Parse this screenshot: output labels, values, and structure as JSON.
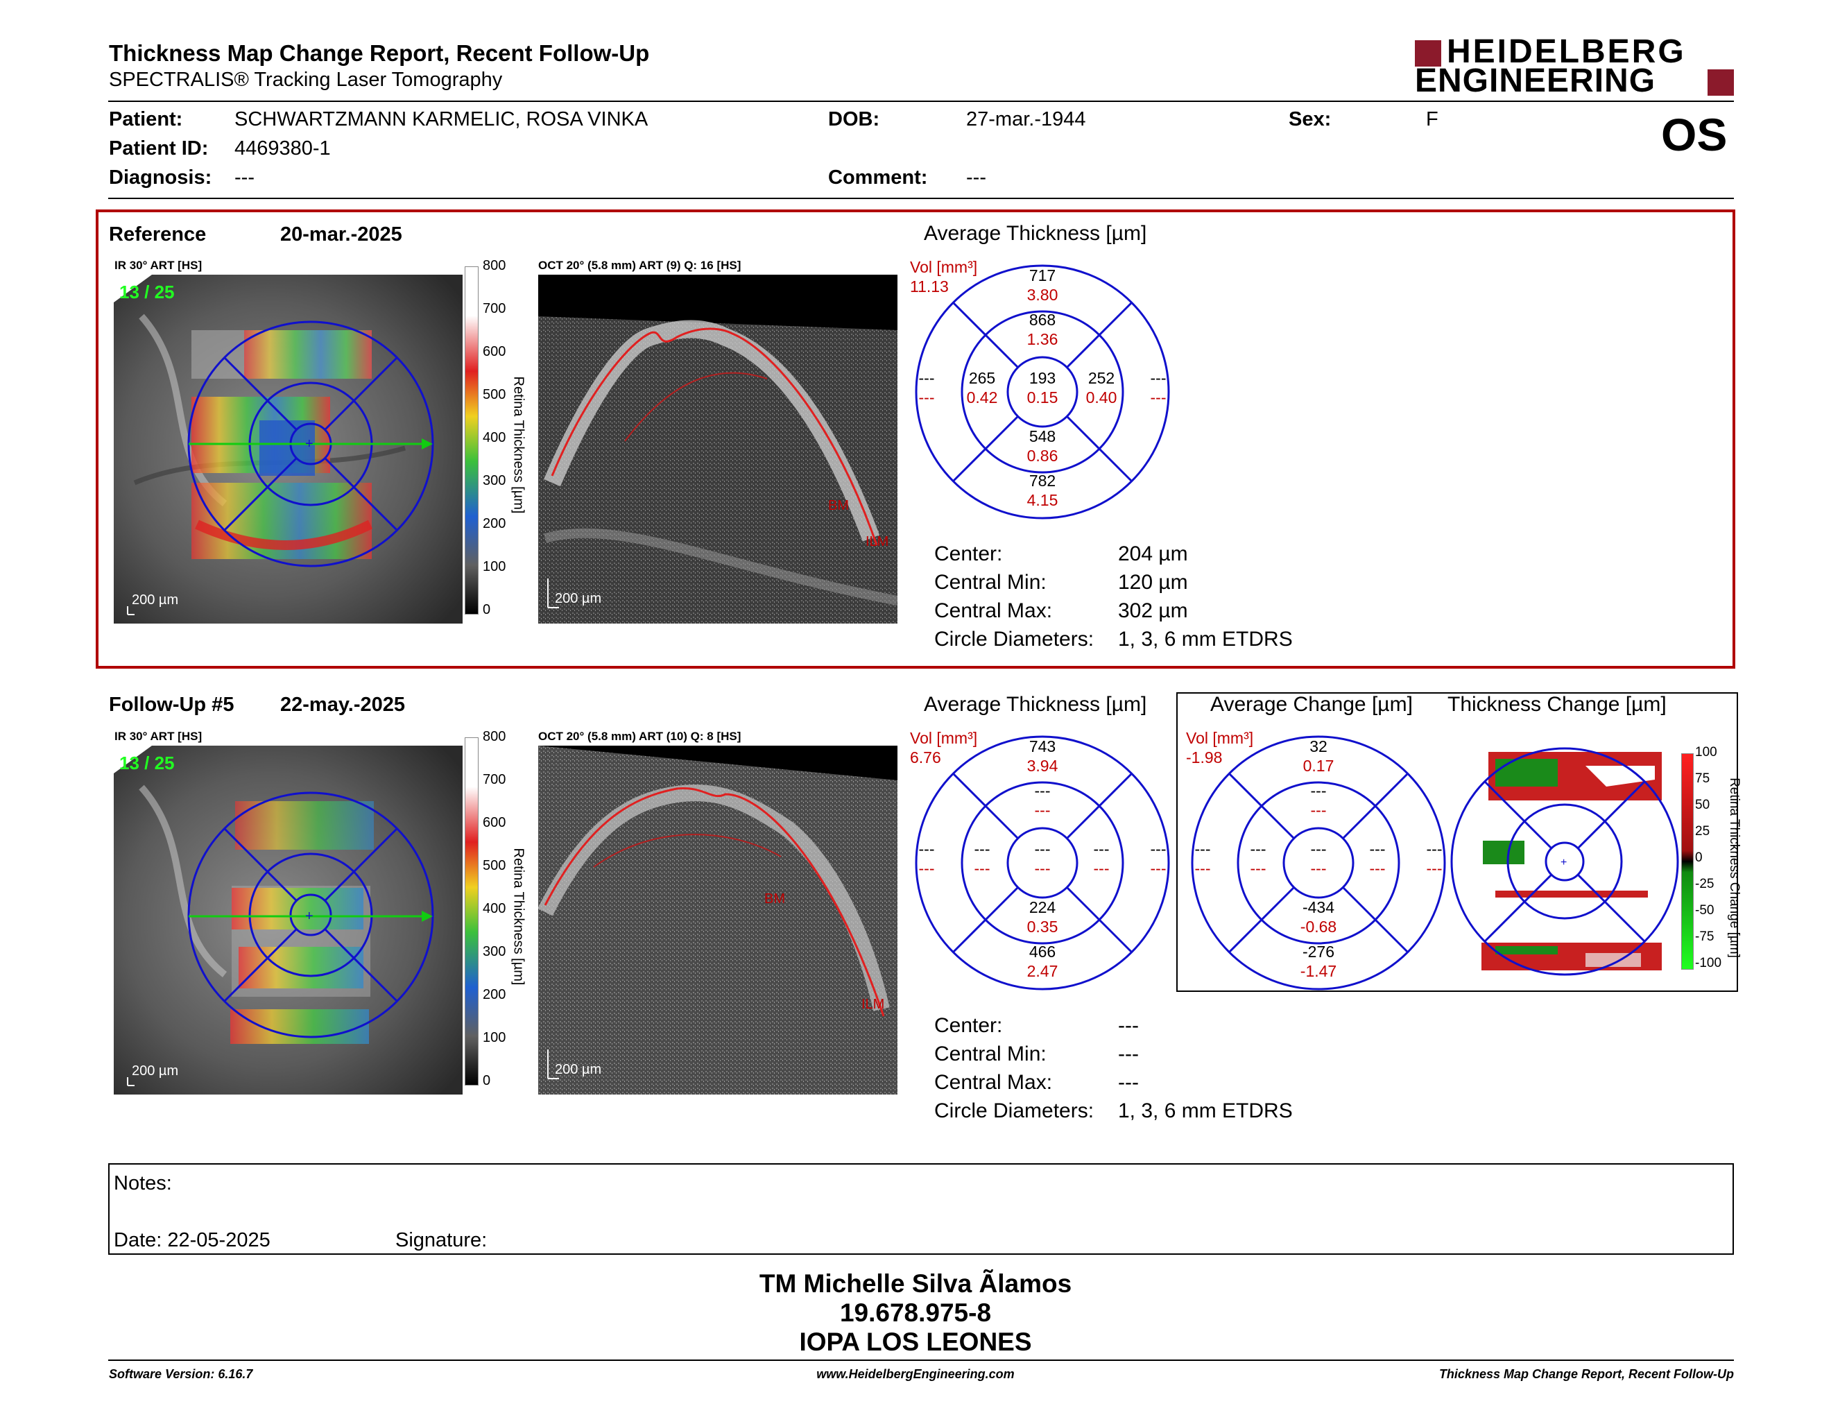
{
  "header": {
    "title": "Thickness Map Change Report, Recent Follow-Up",
    "subtitle": "SPECTRALIS® Tracking Laser Tomography",
    "logo_line1": "HEIDELBERG",
    "logo_line2": "ENGINEERING",
    "eye": "OS"
  },
  "patient": {
    "name_label": "Patient:",
    "name": "SCHWARTZMANN KARMELIC, ROSA VINKA",
    "id_label": "Patient ID:",
    "id": "4469380-1",
    "diagnosis_label": "Diagnosis:",
    "diagnosis": "---",
    "dob_label": "DOB:",
    "dob": "27-mar.-1944",
    "comment_label": "Comment:",
    "comment": "---",
    "sex_label": "Sex:",
    "sex": "F"
  },
  "reference": {
    "label": "Reference",
    "date": "20-mar.-2025",
    "ir_title": "IR 30° ART [HS]",
    "frame": "13 / 25",
    "oct_title": "OCT 20° (5.8 mm) ART (9) Q: 16 [HS]",
    "scale_bar": "200 µm",
    "colorbar_ticks": [
      "800",
      "700",
      "600",
      "500",
      "400",
      "300",
      "200",
      "100",
      "0"
    ],
    "colorbar_label": "Retina Thickness [µm]",
    "oct_labels": {
      "bm": "BM",
      "ilm": "ILM"
    },
    "avg_title": "Average Thickness [µm]",
    "vol_label": "Vol [mm³]",
    "vol": "11.13",
    "sectors": {
      "outer_sup": [
        "717",
        "3.80"
      ],
      "inner_sup": [
        "868",
        "1.36"
      ],
      "outer_temp": [
        "---",
        "---"
      ],
      "inner_temp": [
        "265",
        "0.42"
      ],
      "center": [
        "193",
        "0.15"
      ],
      "inner_nas": [
        "252",
        "0.40"
      ],
      "outer_nas": [
        "---",
        "---"
      ],
      "inner_inf": [
        "548",
        "0.86"
      ],
      "outer_inf": [
        "782",
        "4.15"
      ]
    },
    "metrics": [
      {
        "label": "Center:",
        "value": "204 µm"
      },
      {
        "label": "Central Min:",
        "value": "120 µm"
      },
      {
        "label": "Central Max:",
        "value": "302 µm"
      },
      {
        "label": "Circle Diameters:",
        "value": "1, 3, 6 mm ETDRS"
      }
    ]
  },
  "followup": {
    "label": "Follow-Up #5",
    "date": "22-may.-2025",
    "ir_title": "IR 30° ART [HS]",
    "frame": "13 / 25",
    "oct_title": "OCT 20° (5.8 mm) ART (10) Q: 8 [HS]",
    "scale_bar": "200 µm",
    "colorbar_ticks": [
      "800",
      "700",
      "600",
      "500",
      "400",
      "300",
      "200",
      "100",
      "0"
    ],
    "colorbar_label": "Retina Thickness [µm]",
    "oct_labels": {
      "bm": "BM",
      "ilm": "ILM"
    },
    "avg_title": "Average Thickness [µm]",
    "vol_label": "Vol [mm³]",
    "vol": "6.76",
    "sectors": {
      "outer_sup": [
        "743",
        "3.94"
      ],
      "inner_sup": [
        "---",
        "---"
      ],
      "outer_temp": [
        "---",
        "---"
      ],
      "inner_temp": [
        "---",
        "---"
      ],
      "center": [
        "---",
        "---"
      ],
      "inner_nas": [
        "---",
        "---"
      ],
      "outer_nas": [
        "---",
        "---"
      ],
      "inner_inf": [
        "224",
        "0.35"
      ],
      "outer_inf": [
        "466",
        "2.47"
      ]
    },
    "metrics": [
      {
        "label": "Center:",
        "value": "---"
      },
      {
        "label": "Central Min:",
        "value": "---"
      },
      {
        "label": "Central Max:",
        "value": "---"
      },
      {
        "label": "Circle Diameters:",
        "value": "1, 3, 6 mm ETDRS"
      }
    ],
    "change_title": "Average Change [µm]",
    "change_vol_label": "Vol [mm³]",
    "change_vol": "-1.98",
    "change_sectors": {
      "outer_sup": [
        "32",
        "0.17"
      ],
      "inner_sup": [
        "---",
        "---"
      ],
      "outer_temp": [
        "---",
        "---"
      ],
      "inner_temp": [
        "---",
        "---"
      ],
      "center": [
        "---",
        "---"
      ],
      "inner_nas": [
        "---",
        "---"
      ],
      "outer_nas": [
        "---",
        "---"
      ],
      "inner_inf": [
        "-434",
        "-0.68"
      ],
      "outer_inf": [
        "-276",
        "-1.47"
      ]
    },
    "thick_change_title": "Thickness Change [µm]",
    "change_ticks": [
      "100",
      "75",
      "50",
      "25",
      "0",
      "-25",
      "-50",
      "-75",
      "-100"
    ],
    "change_bar_label": "Retina Thickness Change [µm]"
  },
  "notes": {
    "notes_label": "Notes:",
    "date_label": "Date: 22-05-2025",
    "signature_label": "Signature:"
  },
  "signer": {
    "name": "TM Michelle Silva Ãlamos",
    "rut": "19.678.975-8",
    "org": "IOPA LOS LEONES"
  },
  "footer": {
    "software": "Software Version: 6.16.7",
    "url": "www.HeidelbergEngineering.com",
    "report": "Thickness Map Change Report, Recent Follow-Up"
  },
  "colors": {
    "accent_red": "#c00000",
    "frame_red": "#b00000",
    "etdrs_blue": "#1010cc",
    "logo_red": "#8b1a2b"
  }
}
